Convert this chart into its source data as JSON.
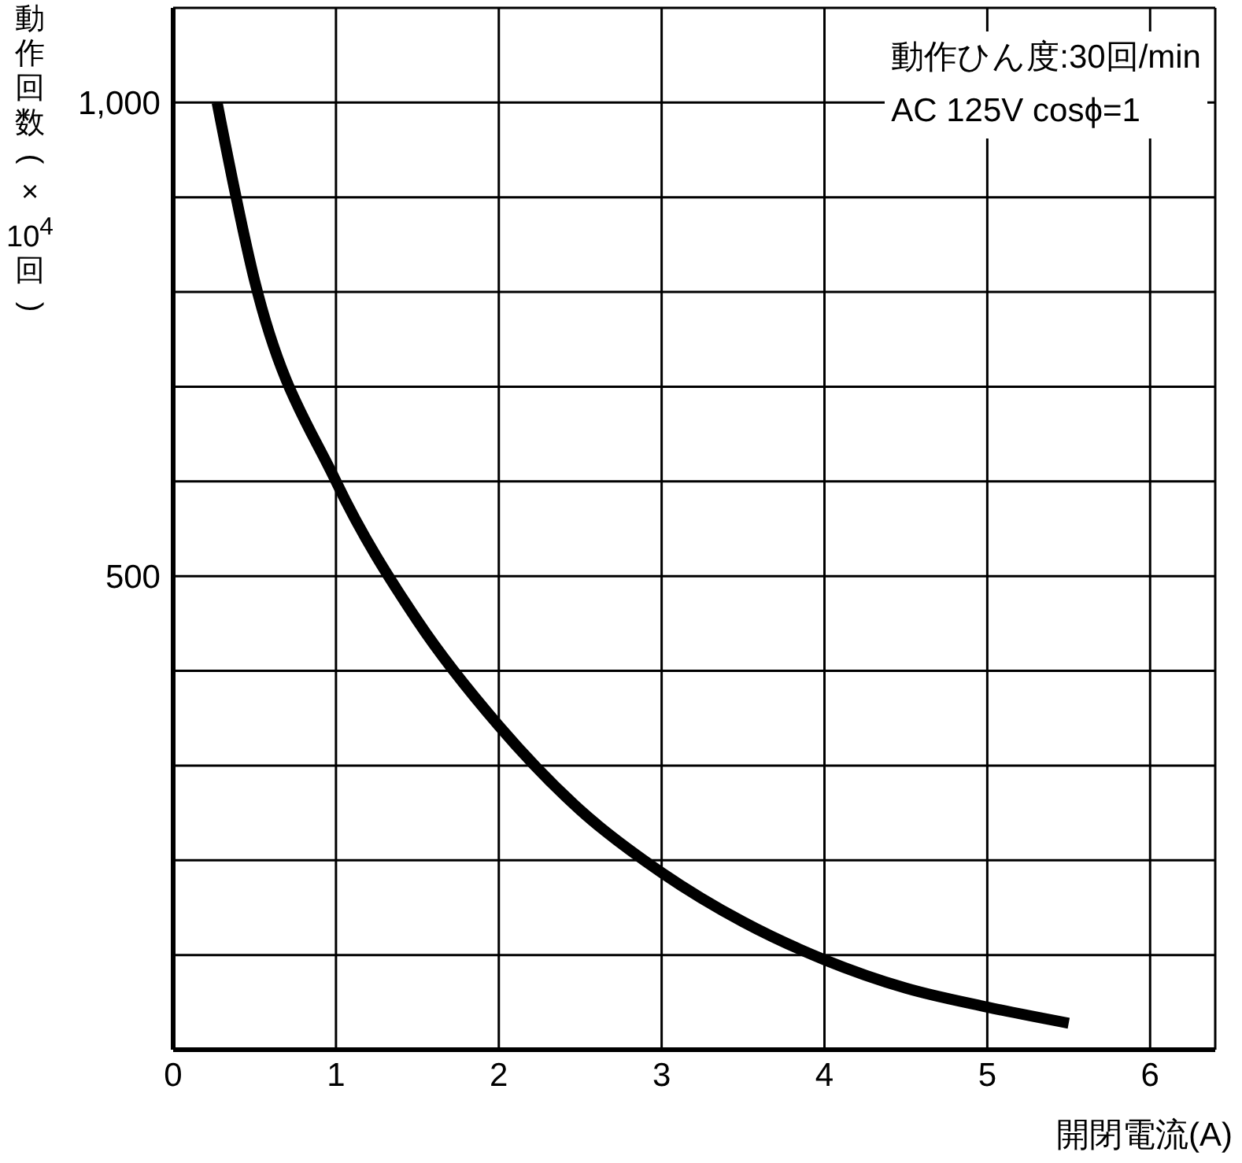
{
  "chart_data": {
    "type": "line",
    "xlabel": "開閉電流(A)",
    "ylabel": "動作回数(×10$^{4}$回)",
    "annotations": [
      "動作ひん度:30回/min",
      "AC 125V cosϕ=1"
    ],
    "x": [
      0.27,
      0.5,
      1,
      1.5,
      2,
      2.5,
      3,
      3.5,
      4,
      4.5,
      5,
      5.5
    ],
    "series": [
      {
        "color": "#000000",
        "values": [
          1000,
          812,
          600,
          453,
          342,
          253,
          187,
          135,
          95,
          65,
          45,
          28
        ]
      }
    ],
    "xlim": [
      0,
      6.4
    ],
    "xticks": [
      0,
      1,
      2,
      3,
      4,
      5,
      6
    ],
    "ylim": [
      0,
      1100
    ],
    "yticks": [
      {
        "value": 0,
        "label": null
      },
      {
        "value": 100,
        "label": null
      },
      {
        "value": 200,
        "label": null
      },
      {
        "value": 300,
        "label": null
      },
      {
        "value": 400,
        "label": null
      },
      500,
      {
        "value": 600,
        "label": null
      },
      {
        "value": 700,
        "label": null
      },
      {
        "value": 800,
        "label": null
      },
      {
        "value": 900,
        "label": null
      },
      {
        "value": 1000,
        "label": "1,000"
      }
    ],
    "grid": true,
    "marker": "none",
    "line_style": "solid",
    "legend": false
  }
}
